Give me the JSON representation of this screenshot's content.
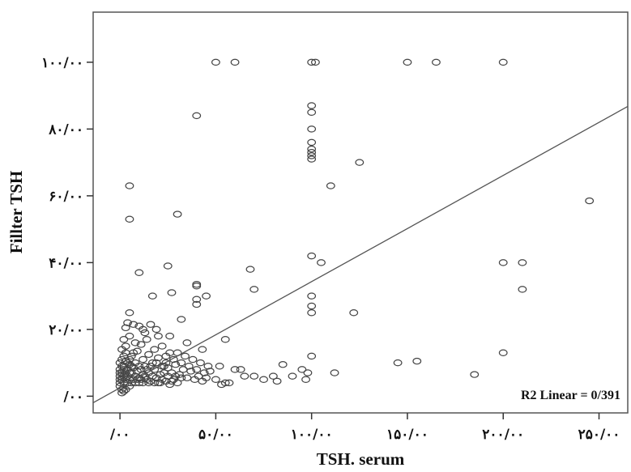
{
  "chart_data": {
    "type": "scatter",
    "xlabel": "TSH. serum",
    "ylabel": "Fillter TSH",
    "xlim": [
      -14,
      265
    ],
    "ylim": [
      -5,
      115
    ],
    "x_ticks": [
      0,
      50,
      100,
      150,
      200,
      250
    ],
    "y_ticks": [
      0,
      20,
      40,
      60,
      80,
      100
    ],
    "x_tick_labels": [
      "/۰۰",
      "۵۰/۰۰",
      "۱۰۰/۰۰",
      "۱۵۰/۰۰",
      "۲۰۰/۰۰",
      "۲۵۰/۰۰"
    ],
    "y_tick_labels": [
      "/۰۰",
      "۲۰/۰۰",
      "۴۰/۰۰",
      "۶۰/۰۰",
      "۸۰/۰۰",
      "۱۰۰/۰۰"
    ],
    "grid": false,
    "annotation": "R2 Linear = 0/391",
    "fit_line": {
      "intercept": 2.5,
      "slope": 0.318
    },
    "points": [
      [
        50,
        100
      ],
      [
        60,
        100
      ],
      [
        100,
        100
      ],
      [
        102,
        100
      ],
      [
        150,
        100
      ],
      [
        165,
        100
      ],
      [
        200,
        100
      ],
      [
        40,
        84
      ],
      [
        100,
        87
      ],
      [
        100,
        85
      ],
      [
        100,
        80
      ],
      [
        100,
        76
      ],
      [
        100,
        74
      ],
      [
        100,
        73
      ],
      [
        100,
        72
      ],
      [
        100,
        71
      ],
      [
        125,
        70
      ],
      [
        110,
        63
      ],
      [
        245,
        58.5
      ],
      [
        5,
        63
      ],
      [
        5,
        53
      ],
      [
        30,
        54.5
      ],
      [
        100,
        42
      ],
      [
        105,
        40
      ],
      [
        200,
        40
      ],
      [
        210,
        40
      ],
      [
        210,
        32
      ],
      [
        10,
        37
      ],
      [
        25,
        39
      ],
      [
        40,
        33
      ],
      [
        40,
        33.5
      ],
      [
        68,
        38
      ],
      [
        70,
        32
      ],
      [
        17,
        30
      ],
      [
        27,
        31
      ],
      [
        40,
        29
      ],
      [
        40,
        27.5
      ],
      [
        45,
        30
      ],
      [
        100,
        30
      ],
      [
        100,
        27
      ],
      [
        100,
        25
      ],
      [
        122,
        25
      ],
      [
        5,
        25
      ],
      [
        12,
        20
      ],
      [
        32,
        23
      ],
      [
        26,
        18
      ],
      [
        55,
        17
      ],
      [
        35,
        16
      ],
      [
        43,
        14
      ],
      [
        100,
        12
      ],
      [
        200,
        13
      ],
      [
        145,
        10
      ],
      [
        155,
        10.5
      ],
      [
        185,
        6.5
      ],
      [
        60,
        8
      ],
      [
        65,
        6
      ],
      [
        80,
        6
      ],
      [
        82,
        4.5
      ],
      [
        85,
        9.5
      ],
      [
        90,
        6
      ],
      [
        95,
        8
      ],
      [
        97,
        5
      ],
      [
        98,
        7
      ],
      [
        112,
        7
      ],
      [
        55,
        4
      ],
      [
        57,
        4
      ],
      [
        63,
        8
      ],
      [
        70,
        6
      ],
      [
        75,
        5
      ],
      [
        47,
        7.5
      ],
      [
        50,
        5
      ],
      [
        52,
        9
      ],
      [
        53,
        3.5
      ],
      [
        3,
        20.5
      ],
      [
        4,
        22
      ],
      [
        7,
        21.5
      ],
      [
        10,
        21
      ],
      [
        13,
        19
      ],
      [
        16,
        21.5
      ],
      [
        19,
        20
      ],
      [
        20,
        18
      ],
      [
        2,
        17
      ],
      [
        5,
        18
      ],
      [
        8,
        16
      ],
      [
        11,
        15.5
      ],
      [
        14,
        17
      ],
      [
        18,
        14
      ],
      [
        22,
        15
      ],
      [
        24,
        12
      ],
      [
        26,
        13
      ],
      [
        28,
        11
      ],
      [
        30,
        13
      ],
      [
        32,
        10
      ],
      [
        34,
        12
      ],
      [
        36,
        9
      ],
      [
        38,
        11
      ],
      [
        40,
        8
      ],
      [
        42,
        10
      ],
      [
        44,
        7
      ],
      [
        46,
        9
      ],
      [
        1,
        14
      ],
      [
        3,
        13
      ],
      [
        6,
        12
      ],
      [
        9,
        13.5
      ],
      [
        12,
        11
      ],
      [
        15,
        12.5
      ],
      [
        17,
        10
      ],
      [
        20,
        11.5
      ],
      [
        23,
        9
      ],
      [
        25,
        8.5
      ],
      [
        27,
        7
      ],
      [
        29,
        9.5
      ],
      [
        31,
        6.5
      ],
      [
        33,
        8
      ],
      [
        35,
        5.5
      ],
      [
        37,
        7.5
      ],
      [
        39,
        5
      ],
      [
        41,
        6
      ],
      [
        43,
        4.5
      ],
      [
        45,
        5.5
      ],
      [
        0,
        10
      ],
      [
        1,
        11
      ],
      [
        2,
        9
      ],
      [
        3,
        10.5
      ],
      [
        4,
        8
      ],
      [
        5,
        9.5
      ],
      [
        6,
        7
      ],
      [
        7,
        8.5
      ],
      [
        8,
        6
      ],
      [
        9,
        7.5
      ],
      [
        10,
        5.5
      ],
      [
        11,
        8
      ],
      [
        12,
        6.5
      ],
      [
        13,
        9
      ],
      [
        14,
        5
      ],
      [
        15,
        7
      ],
      [
        16,
        4.5
      ],
      [
        17,
        6
      ],
      [
        18,
        8
      ],
      [
        19,
        5.5
      ],
      [
        20,
        4
      ],
      [
        21,
        6.5
      ],
      [
        22,
        5
      ],
      [
        23,
        7
      ],
      [
        24,
        4.5
      ],
      [
        25,
        6
      ],
      [
        26,
        3.5
      ],
      [
        28,
        5
      ],
      [
        30,
        4
      ],
      [
        32,
        5.5
      ],
      [
        0,
        6
      ],
      [
        0,
        7
      ],
      [
        0,
        8
      ],
      [
        0,
        5
      ],
      [
        0,
        4
      ],
      [
        0,
        3
      ],
      [
        1,
        5
      ],
      [
        1,
        7
      ],
      [
        1,
        9
      ],
      [
        2,
        4
      ],
      [
        2,
        6
      ],
      [
        2,
        8
      ],
      [
        2,
        12
      ],
      [
        3,
        5
      ],
      [
        3,
        7
      ],
      [
        3,
        15
      ],
      [
        4,
        4
      ],
      [
        4,
        6
      ],
      [
        4,
        10
      ],
      [
        5,
        3
      ],
      [
        5,
        5
      ],
      [
        5,
        7
      ],
      [
        5,
        11
      ],
      [
        6,
        4
      ],
      [
        6,
        9
      ],
      [
        7,
        5
      ],
      [
        7,
        13
      ],
      [
        8,
        4
      ],
      [
        8,
        10
      ],
      [
        9,
        5
      ],
      [
        10,
        4
      ],
      [
        10,
        9
      ],
      [
        11,
        5
      ],
      [
        12,
        4
      ],
      [
        13,
        6
      ],
      [
        14,
        8
      ],
      [
        15,
        4
      ],
      [
        16,
        9
      ],
      [
        18,
        4
      ],
      [
        19,
        10
      ],
      [
        21,
        4
      ],
      [
        22,
        9
      ],
      [
        24,
        10
      ],
      [
        27,
        4.5
      ],
      [
        29,
        6
      ],
      [
        1,
        1
      ],
      [
        1,
        2
      ],
      [
        2,
        1.5
      ],
      [
        3,
        2
      ]
    ]
  }
}
